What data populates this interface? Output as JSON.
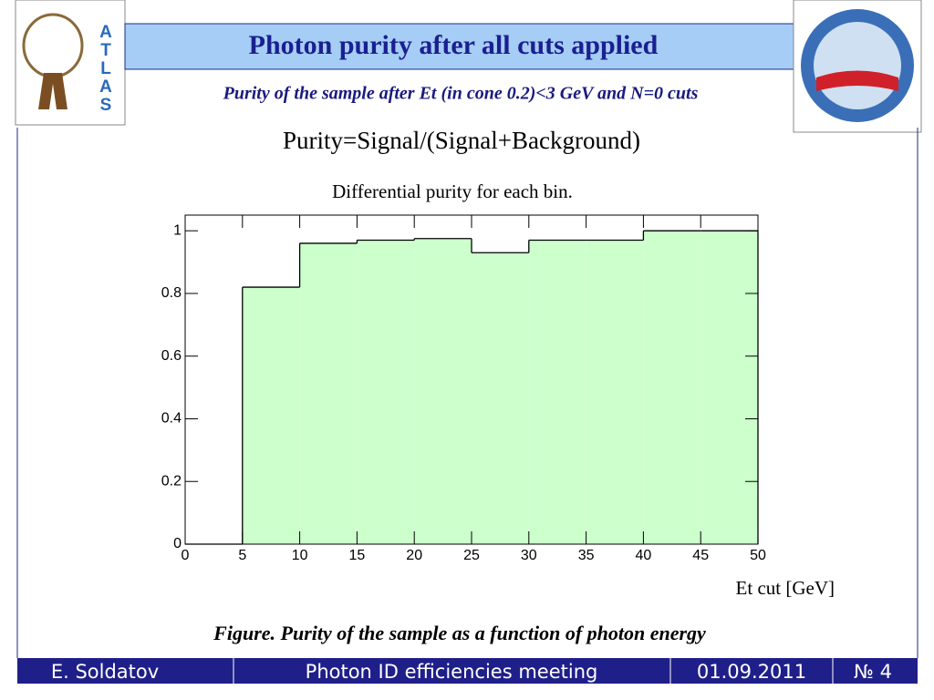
{
  "header": {
    "title": "Photon purity after all cuts applied",
    "subtitle": "Purity of the sample after Et (in cone 0.2)<3 GeV and N=0 cuts",
    "left_logo": "ATLAS"
  },
  "formula": "Purity=Signal/(Signal+Background)",
  "caption": "Figure. Purity of the sample as a function of photon energy",
  "footer": {
    "author": "E. Soldatov",
    "meeting": "Photon ID efficiencies meeting",
    "date": "01.09.2011",
    "page": "№ 4"
  },
  "chart_data": {
    "type": "histogram",
    "title": "Differential purity for each bin.",
    "x_label": "Et cut [GeV]",
    "bins": [
      0,
      5,
      10,
      15,
      20,
      25,
      30,
      35,
      40,
      45,
      50
    ],
    "values": [
      0,
      0.82,
      0.96,
      0.97,
      0.975,
      0.93,
      0.97,
      0.97,
      1.0,
      1.0
    ],
    "color": "#ccffcc",
    "edge_color": "#000000",
    "xlim": [
      0,
      50
    ],
    "xticks": [
      0,
      5,
      10,
      15,
      20,
      25,
      30,
      35,
      40,
      45,
      50
    ],
    "ylim": [
      0,
      1.05
    ],
    "yticks": [
      0,
      0.2,
      0.4,
      0.6,
      0.8,
      1
    ]
  }
}
